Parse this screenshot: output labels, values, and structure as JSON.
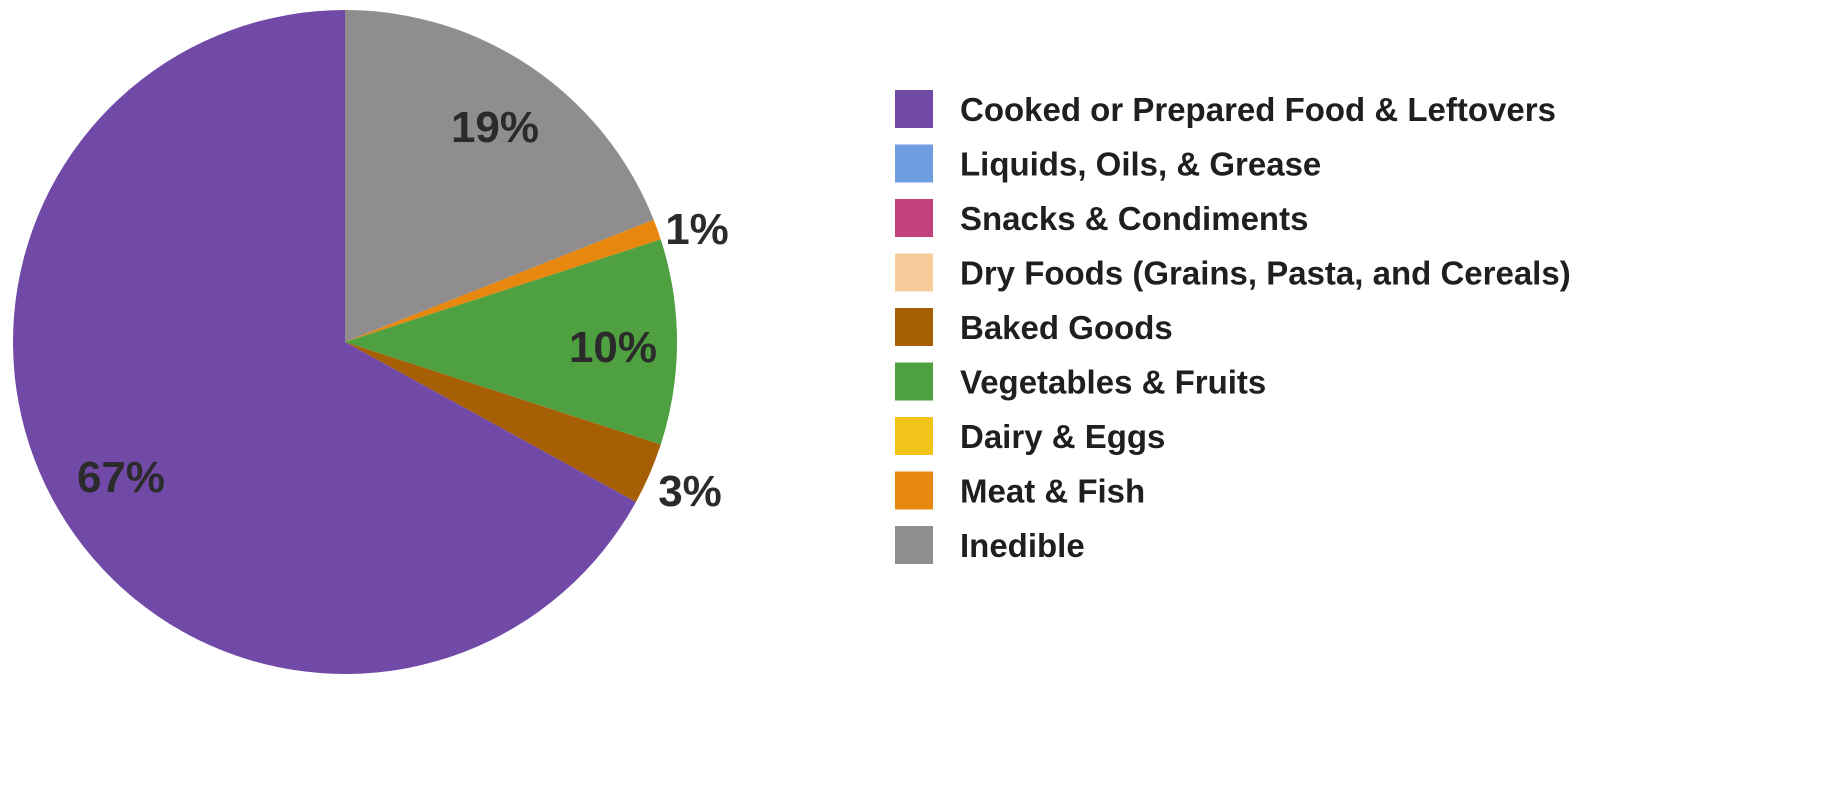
{
  "chart_data": {
    "type": "pie",
    "title": "",
    "legend_position": "right",
    "start_angle_deg": 0,
    "direction": "clockwise",
    "slices": [
      {
        "name": "Inedible",
        "value": 19,
        "label": "19%",
        "color": "#8f8d8d"
      },
      {
        "name": "Meat & Fish",
        "value": 1,
        "label": "1%",
        "color": "#e8870e"
      },
      {
        "name": "Dairy & Eggs",
        "value": 0,
        "label": "",
        "color": "#f0c419"
      },
      {
        "name": "Vegetables & Fruits",
        "value": 10,
        "label": "10%",
        "color": "#4ea040"
      },
      {
        "name": "Baked Goods",
        "value": 3,
        "label": "3%",
        "color": "#a65f05"
      },
      {
        "name": "Dry Foods (Grains, Pasta, and Cereals)",
        "value": 0,
        "label": "",
        "color": "#f8cc9a"
      },
      {
        "name": "Snacks & Condiments",
        "value": 0,
        "label": "",
        "color": "#c2417a"
      },
      {
        "name": "Liquids, Oils, & Grease",
        "value": 0,
        "label": "",
        "color": "#6f9ee0"
      },
      {
        "name": "Cooked or Prepared Food & Leftovers",
        "value": 67,
        "label": "67%",
        "color": "#714aa8"
      }
    ],
    "legend": [
      {
        "name": "Cooked or Prepared Food & Leftovers",
        "color": "#714aa8"
      },
      {
        "name": "Liquids, Oils, & Grease",
        "color": "#6f9ee0"
      },
      {
        "name": "Snacks & Condiments",
        "color": "#c2417a"
      },
      {
        "name": "Dry Foods (Grains, Pasta, and Cereals)",
        "color": "#f8cc9a"
      },
      {
        "name": "Baked Goods",
        "color": "#a65f05"
      },
      {
        "name": "Vegetables & Fruits",
        "color": "#4ea040"
      },
      {
        "name": "Dairy & Eggs",
        "color": "#f0c419"
      },
      {
        "name": "Meat & Fish",
        "color": "#e8870e"
      },
      {
        "name": "Inedible",
        "color": "#8f8d8d"
      }
    ]
  }
}
